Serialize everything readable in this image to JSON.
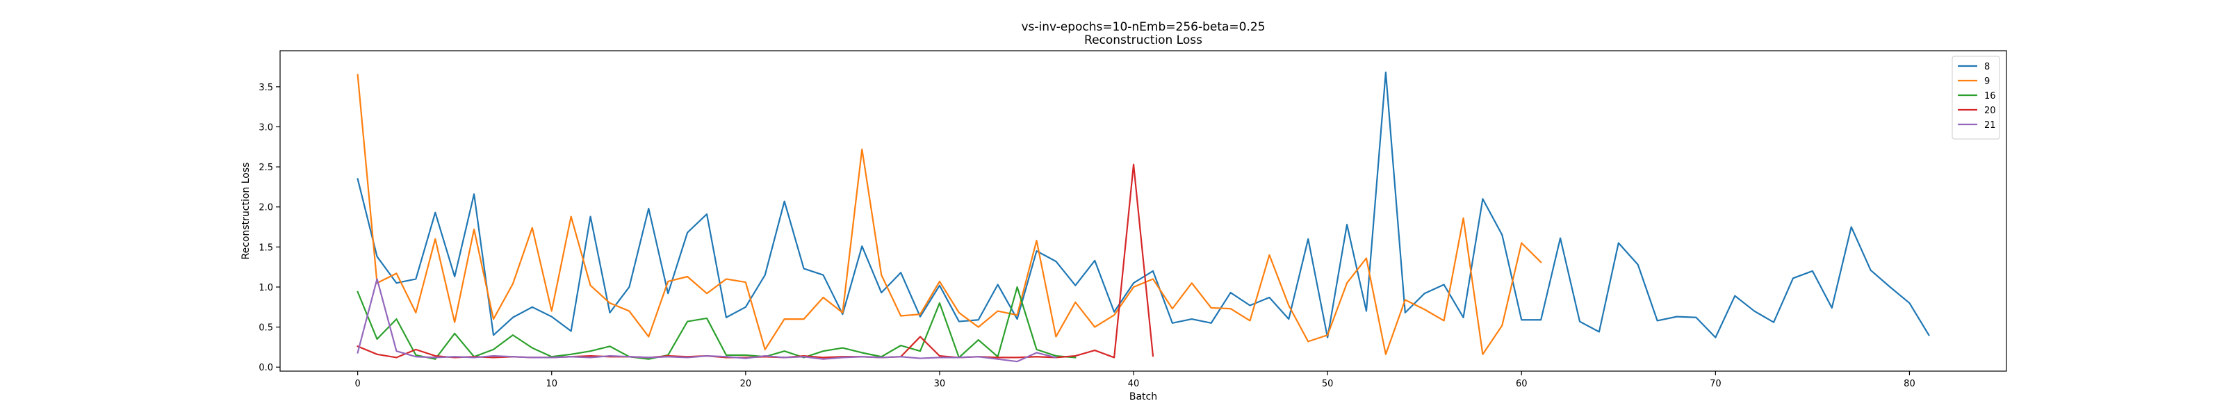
{
  "chart_data": {
    "type": "line",
    "title": "vs-inv-epochs=10-nEmb=256-beta=0.25",
    "subtitle": "Reconstruction Loss",
    "xlabel": "Batch",
    "ylabel": "Reconstruction Loss",
    "xlim": [
      -4,
      85
    ],
    "ylim": [
      -0.05,
      3.95
    ],
    "xticks": [
      0,
      10,
      20,
      30,
      40,
      50,
      60,
      70,
      80
    ],
    "yticks": [
      0.0,
      0.5,
      1.0,
      1.5,
      2.0,
      2.5,
      3.0,
      3.5
    ],
    "grid": false,
    "legend_position": "top-right",
    "series": [
      {
        "name": "8",
        "color": "#1f77b4",
        "x": [
          0,
          1,
          2,
          3,
          4,
          5,
          6,
          7,
          8,
          9,
          10,
          11,
          12,
          13,
          14,
          15,
          16,
          17,
          18,
          19,
          20,
          21,
          22,
          23,
          24,
          25,
          26,
          27,
          28,
          29,
          30,
          31,
          32,
          33,
          34,
          35,
          36,
          37,
          38,
          39,
          40,
          41,
          42,
          43,
          44,
          45,
          46,
          47,
          48,
          49,
          50,
          51,
          52,
          53,
          54,
          55,
          56,
          57,
          58,
          59,
          60,
          61,
          62,
          63,
          64,
          65,
          66,
          67,
          68,
          69,
          70,
          71,
          72,
          73,
          74,
          75,
          76,
          77,
          78,
          79,
          80,
          81
        ],
        "values": [
          2.35,
          1.38,
          1.05,
          1.1,
          1.93,
          1.13,
          2.16,
          0.4,
          0.62,
          0.75,
          0.63,
          0.45,
          1.88,
          0.68,
          1.0,
          1.98,
          0.92,
          1.68,
          1.91,
          0.62,
          0.75,
          1.15,
          2.07,
          1.23,
          1.15,
          0.66,
          1.51,
          0.93,
          1.18,
          0.63,
          1.02,
          0.57,
          0.59,
          1.03,
          0.6,
          1.45,
          1.32,
          1.02,
          1.33,
          0.69,
          1.05,
          1.2,
          0.55,
          0.6,
          0.55,
          0.93,
          0.77,
          0.87,
          0.6,
          1.6,
          0.37,
          1.78,
          0.7,
          3.68,
          0.68,
          0.92,
          1.03,
          0.62,
          2.1,
          1.65,
          0.59,
          0.59,
          1.61,
          0.57,
          0.44,
          1.55,
          1.28,
          0.58,
          0.63,
          0.62,
          0.37,
          0.89,
          0.7,
          0.56,
          1.11,
          1.2,
          0.74,
          1.75,
          1.21,
          1.0,
          0.8,
          0.4
        ]
      },
      {
        "name": "9",
        "color": "#ff7f0e",
        "x": [
          0,
          1,
          2,
          3,
          4,
          5,
          6,
          7,
          8,
          9,
          10,
          11,
          12,
          13,
          14,
          15,
          16,
          17,
          18,
          19,
          20,
          21,
          22,
          23,
          24,
          25,
          26,
          27,
          28,
          29,
          30,
          31,
          32,
          33,
          34,
          35,
          36,
          37,
          38,
          39,
          40,
          41,
          42,
          43,
          44,
          45,
          46,
          47,
          48,
          49,
          50,
          51,
          52,
          53,
          54,
          55,
          56,
          57,
          58,
          59,
          60,
          61
        ],
        "values": [
          3.65,
          1.05,
          1.17,
          0.68,
          1.6,
          0.56,
          1.72,
          0.6,
          1.04,
          1.74,
          0.7,
          1.88,
          1.02,
          0.8,
          0.7,
          0.38,
          1.07,
          1.13,
          0.92,
          1.1,
          1.06,
          0.22,
          0.6,
          0.6,
          0.87,
          0.68,
          2.72,
          1.15,
          0.64,
          0.66,
          1.07,
          0.68,
          0.5,
          0.7,
          0.65,
          1.58,
          0.38,
          0.81,
          0.5,
          0.65,
          1.0,
          1.1,
          0.73,
          1.05,
          0.74,
          0.73,
          0.58,
          1.4,
          0.77,
          0.32,
          0.4,
          1.05,
          1.36,
          0.16,
          0.84,
          0.72,
          0.58,
          1.86,
          0.16,
          0.52,
          1.55,
          1.31
        ]
      },
      {
        "name": "16",
        "color": "#2ca02c",
        "x": [
          0,
          1,
          2,
          3,
          4,
          5,
          6,
          7,
          8,
          9,
          10,
          11,
          12,
          13,
          14,
          15,
          16,
          17,
          18,
          19,
          20,
          21,
          22,
          23,
          24,
          25,
          26,
          27,
          28,
          29,
          30,
          31,
          32,
          33,
          34,
          35,
          36,
          37
        ],
        "values": [
          0.94,
          0.35,
          0.6,
          0.15,
          0.1,
          0.42,
          0.13,
          0.22,
          0.4,
          0.24,
          0.13,
          0.16,
          0.2,
          0.26,
          0.13,
          0.1,
          0.15,
          0.57,
          0.61,
          0.15,
          0.15,
          0.13,
          0.2,
          0.12,
          0.2,
          0.24,
          0.18,
          0.13,
          0.27,
          0.2,
          0.8,
          0.12,
          0.34,
          0.13,
          1.0,
          0.22,
          0.14,
          0.12
        ]
      },
      {
        "name": "20",
        "color": "#d62728",
        "x": [
          0,
          1,
          2,
          3,
          4,
          5,
          6,
          7,
          8,
          9,
          10,
          11,
          12,
          13,
          14,
          15,
          16,
          17,
          18,
          19,
          20,
          21,
          22,
          23,
          24,
          25,
          26,
          27,
          28,
          29,
          30,
          31,
          32,
          33,
          34,
          35,
          36,
          37,
          38,
          39,
          40,
          41
        ],
        "values": [
          0.26,
          0.16,
          0.12,
          0.22,
          0.14,
          0.12,
          0.13,
          0.12,
          0.13,
          0.12,
          0.12,
          0.13,
          0.14,
          0.13,
          0.13,
          0.12,
          0.14,
          0.13,
          0.14,
          0.12,
          0.12,
          0.13,
          0.12,
          0.14,
          0.12,
          0.13,
          0.13,
          0.12,
          0.13,
          0.38,
          0.14,
          0.12,
          0.13,
          0.12,
          0.12,
          0.13,
          0.12,
          0.14,
          0.21,
          0.12,
          2.53,
          0.14
        ]
      },
      {
        "name": "21",
        "color": "#9467bd",
        "x": [
          0,
          1,
          2,
          3,
          4,
          5,
          6,
          7,
          8,
          9,
          10,
          11,
          12,
          13,
          14,
          15,
          16,
          17,
          18,
          19,
          20,
          21,
          22,
          23,
          24,
          25,
          26,
          27,
          28,
          29,
          30,
          31,
          32,
          33,
          34,
          35,
          36
        ],
        "values": [
          0.18,
          1.1,
          0.2,
          0.13,
          0.12,
          0.13,
          0.12,
          0.14,
          0.13,
          0.12,
          0.12,
          0.13,
          0.12,
          0.14,
          0.13,
          0.12,
          0.13,
          0.12,
          0.14,
          0.13,
          0.11,
          0.14,
          0.12,
          0.13,
          0.1,
          0.12,
          0.13,
          0.12,
          0.13,
          0.11,
          0.12,
          0.12,
          0.13,
          0.1,
          0.07,
          0.18,
          0.12
        ]
      }
    ]
  }
}
